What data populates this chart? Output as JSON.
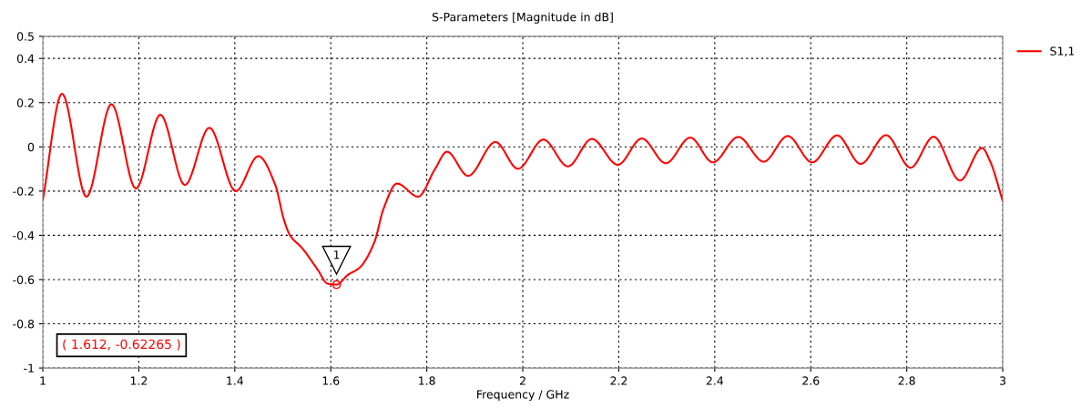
{
  "chart_data": {
    "type": "line",
    "title": "S-Parameters [Magnitude in dB]",
    "xlabel": "Frequency / GHz",
    "x": [
      1.0,
      1.04,
      1.091,
      1.143,
      1.194,
      1.245,
      1.296,
      1.347,
      1.402,
      1.449,
      1.484,
      1.503,
      1.515,
      1.54,
      1.572,
      1.594,
      1.612,
      1.635,
      1.66,
      1.691,
      1.71,
      1.738,
      1.782,
      1.817,
      1.842,
      1.886,
      1.943,
      1.99,
      2.043,
      2.094,
      2.144,
      2.198,
      2.248,
      2.298,
      2.349,
      2.396,
      2.449,
      2.502,
      2.552,
      2.603,
      2.655,
      2.704,
      2.757,
      2.808,
      2.856,
      2.911,
      2.957,
      2.974,
      3.0
    ],
    "series": [
      {
        "name": "S1,1",
        "color": "#ff0000",
        "values": [
          -0.24,
          0.24,
          -0.225,
          0.193,
          -0.188,
          0.145,
          -0.172,
          0.086,
          -0.2,
          -0.042,
          -0.17,
          -0.334,
          -0.4,
          -0.457,
          -0.553,
          -0.619,
          -0.62265,
          -0.58,
          -0.546,
          -0.43,
          -0.279,
          -0.166,
          -0.225,
          -0.101,
          -0.022,
          -0.131,
          0.022,
          -0.099,
          0.033,
          -0.088,
          0.036,
          -0.081,
          0.038,
          -0.074,
          0.042,
          -0.07,
          0.045,
          -0.067,
          0.049,
          -0.07,
          0.052,
          -0.077,
          0.053,
          -0.094,
          0.046,
          -0.152,
          -0.005,
          -0.067,
          -0.245
        ]
      }
    ],
    "xlim": [
      1,
      3
    ],
    "xticks": [
      1,
      1.2,
      1.4,
      1.6,
      1.8,
      2,
      2.2,
      2.4,
      2.6,
      2.8,
      3
    ],
    "ylim": [
      -1,
      0.5
    ],
    "yticks": [
      -1,
      -0.8,
      -0.6,
      -0.4,
      -0.2,
      0,
      0.2,
      0.4,
      0.5
    ],
    "grid": true,
    "legend": "top right",
    "line_style": "solid",
    "marker": "none",
    "annotations": [
      {
        "text": "1",
        "x": 1.612,
        "y": -0.62265
      },
      "( 1.612, -0.62265 )"
    ]
  }
}
